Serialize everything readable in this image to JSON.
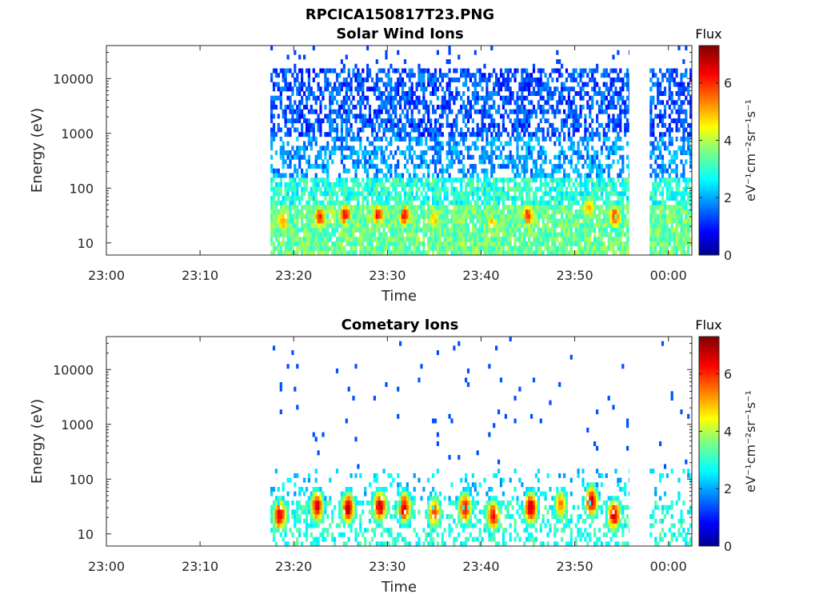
{
  "figure_title": "RPCICA150817T23.PNG",
  "colorbar": {
    "title": "Flux",
    "label": "eV⁻¹cm⁻²sr⁻¹s⁻¹",
    "ticks": [
      "0",
      "2",
      "4",
      "6"
    ],
    "range": [
      0,
      7.3
    ],
    "colormap": "jet"
  },
  "chart_data": [
    {
      "type": "heatmap",
      "title": "Solar Wind Ions",
      "xlabel": "Time",
      "ylabel": "Energy (eV)",
      "x_ticks": [
        "23:00",
        "23:10",
        "23:20",
        "23:30",
        "23:40",
        "23:50",
        "00:00"
      ],
      "y_ticks": [
        "10",
        "100",
        "1000",
        "10000"
      ],
      "y_scale": "log",
      "ylim": [
        6,
        40000
      ],
      "xlim_minutes": [
        0,
        62.5
      ],
      "data_coverage_minutes": [
        [
          17.5,
          55.8
        ],
        [
          58.0,
          62.5
        ]
      ],
      "flux_bands": [
        {
          "energy_range_ev": [
            800,
            15000
          ],
          "flux": 1.5,
          "density": 0.55
        },
        {
          "energy_range_ev": [
            150,
            800
          ],
          "flux": 2.0,
          "density": 0.5
        },
        {
          "energy_range_ev": [
            50,
            150
          ],
          "flux": 3.0,
          "density": 0.75
        },
        {
          "energy_range_ev": [
            6,
            50
          ],
          "flux": 3.5,
          "density": 0.9
        }
      ],
      "peaks": [
        {
          "time_min": 18.8,
          "energy_ev": 25,
          "flux": 5.5
        },
        {
          "time_min": 22.8,
          "energy_ev": 30,
          "flux": 6.2
        },
        {
          "time_min": 25.5,
          "energy_ev": 32,
          "flux": 6.5
        },
        {
          "time_min": 29.0,
          "energy_ev": 32,
          "flux": 6.3
        },
        {
          "time_min": 31.8,
          "energy_ev": 32,
          "flux": 6.4
        },
        {
          "time_min": 35.0,
          "energy_ev": 28,
          "flux": 5.0
        },
        {
          "time_min": 41.2,
          "energy_ev": 25,
          "flux": 5.0
        },
        {
          "time_min": 45.0,
          "energy_ev": 32,
          "flux": 6.2
        },
        {
          "time_min": 51.5,
          "energy_ev": 45,
          "flux": 5.2
        },
        {
          "time_min": 54.3,
          "energy_ev": 30,
          "flux": 6.2
        }
      ]
    },
    {
      "type": "heatmap",
      "title": "Cometary Ions",
      "xlabel": "Time",
      "ylabel": "Energy (eV)",
      "x_ticks": [
        "23:00",
        "23:10",
        "23:20",
        "23:30",
        "23:40",
        "23:50",
        "00:00"
      ],
      "y_ticks": [
        "10",
        "100",
        "1000",
        "10000"
      ],
      "y_scale": "log",
      "ylim": [
        6,
        40000
      ],
      "xlim_minutes": [
        0,
        62.5
      ],
      "data_coverage_minutes": [
        [
          17.5,
          55.8
        ],
        [
          58.0,
          62.5
        ]
      ],
      "peaks": [
        {
          "time_min": 18.5,
          "energy_ev": 22,
          "flux": 6.8
        },
        {
          "time_min": 22.5,
          "energy_ev": 32,
          "flux": 6.8
        },
        {
          "time_min": 25.8,
          "energy_ev": 30,
          "flux": 7.0
        },
        {
          "time_min": 29.2,
          "energy_ev": 32,
          "flux": 6.8
        },
        {
          "time_min": 31.8,
          "energy_ev": 30,
          "flux": 6.8
        },
        {
          "time_min": 35.0,
          "energy_ev": 25,
          "flux": 6.0
        },
        {
          "time_min": 38.3,
          "energy_ev": 30,
          "flux": 6.5
        },
        {
          "time_min": 41.3,
          "energy_ev": 22,
          "flux": 6.5
        },
        {
          "time_min": 45.3,
          "energy_ev": 30,
          "flux": 7.0
        },
        {
          "time_min": 48.5,
          "energy_ev": 35,
          "flux": 5.5
        },
        {
          "time_min": 51.8,
          "energy_ev": 40,
          "flux": 6.8
        },
        {
          "time_min": 54.2,
          "energy_ev": 22,
          "flux": 6.8
        }
      ]
    }
  ]
}
